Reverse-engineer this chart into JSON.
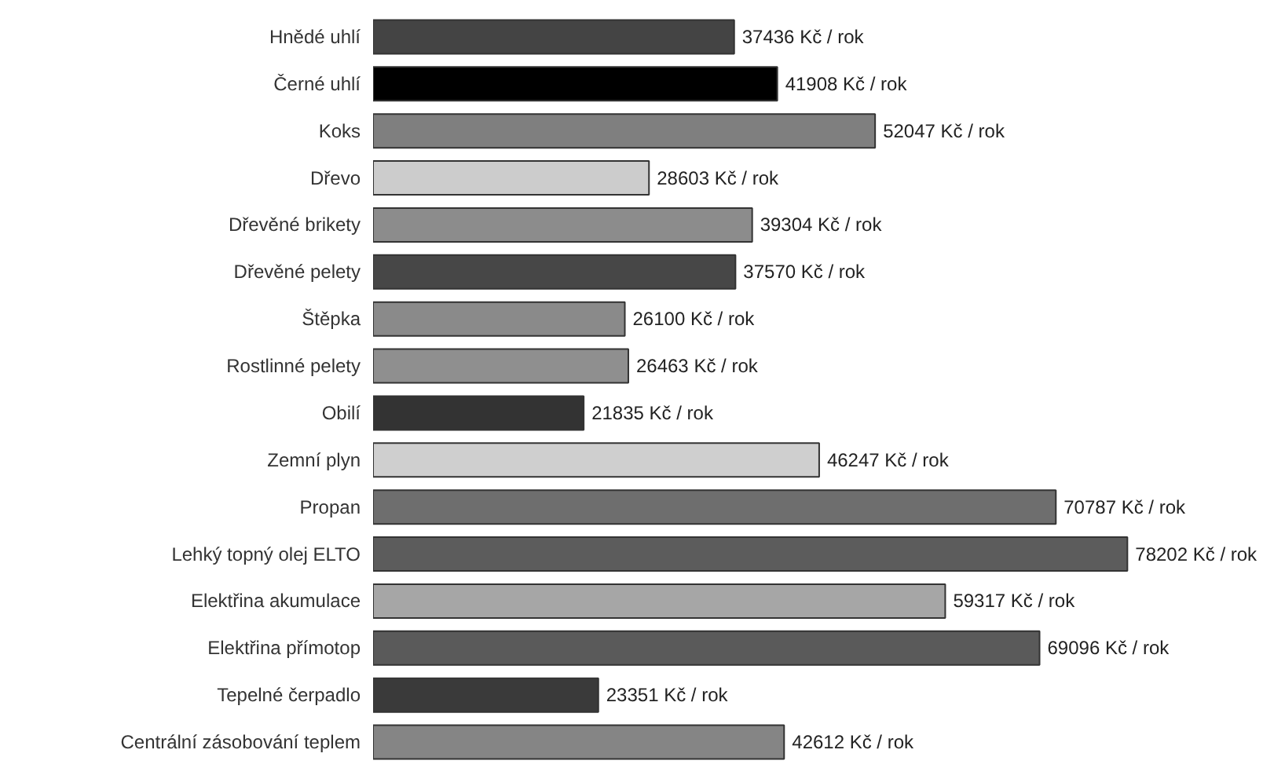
{
  "chart_data": {
    "type": "bar",
    "orientation": "horizontal",
    "categories": [
      "Hnědé uhlí",
      "Černé uhlí",
      "Koks",
      "Dřevo",
      "Dřevěné brikety",
      "Dřevěné pelety",
      "Štěpka",
      "Rostlinné pelety",
      "Obilí",
      "Zemní plyn",
      "Propan",
      "Lehký topný olej ELTO",
      "Elektřina akumulace",
      "Elektřina přímotop",
      "Tepelné čerpadlo",
      "Centrální zásobování teplem"
    ],
    "values": [
      37436,
      41908,
      52047,
      28603,
      39304,
      37570,
      26100,
      26463,
      21835,
      46247,
      70787,
      78202,
      59317,
      69096,
      23351,
      42612
    ],
    "colors": [
      "#444444",
      "#000000",
      "#7f7f7f",
      "#cccccc",
      "#8c8c8c",
      "#474747",
      "#8a8a8a",
      "#8f8f8f",
      "#333333",
      "#cfcfcf",
      "#6e6e6e",
      "#5c5c5c",
      "#a6a6a6",
      "#5a5a5a",
      "#3a3a3a",
      "#858585"
    ],
    "value_labels": [
      "37436 Kč / rok",
      "41908 Kč / rok",
      "52047 Kč / rok",
      "28603 Kč / rok",
      "39304 Kč / rok",
      "37570 Kč / rok",
      "26100 Kč / rok",
      "26463 Kč / rok",
      "21835 Kč / rok",
      "46247 Kč / rok",
      "70787 Kč / rok",
      "78202 Kč / rok",
      "59317 Kč / rok",
      "69096 Kč / rok",
      "23351 Kč / rok",
      "42612 Kč / rok"
    ],
    "tick_labels": "y",
    "grid": false
  }
}
